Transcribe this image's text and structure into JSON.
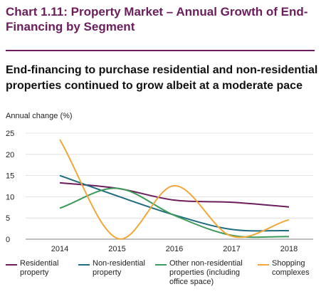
{
  "header": {
    "chart_title": "Chart 1.11: Property Market – Annual Growth of End-Financing by Segment",
    "subtitle": "End-financing to purchase residential and non-residential properties continued to grow albeit at a moderate pace"
  },
  "colors": {
    "title": "#6b1d5c",
    "residential": "#6b1d5c",
    "non_residential": "#1f6b80",
    "other_non_residential": "#3d9a5a",
    "shopping": "#f0a83a"
  },
  "chart_data": {
    "type": "line",
    "ylabel": "Annual change (%)",
    "xlabel": "",
    "x": [
      2014,
      2015,
      2016,
      2017,
      2018
    ],
    "x_tick_labels": [
      "2014",
      "2015",
      "2016",
      "2017",
      "2018"
    ],
    "ylim": [
      0,
      25
    ],
    "y_ticks": [
      0,
      5,
      10,
      15,
      20,
      25
    ],
    "grid": "horizontal",
    "legend_placement": "bottom",
    "series": [
      {
        "name": "Residential property",
        "key": "residential",
        "values": [
          13.3,
          12.0,
          9.2,
          8.7,
          7.6
        ]
      },
      {
        "name": "Non-residential property",
        "key": "non_residential",
        "values": [
          15.0,
          10.2,
          5.7,
          2.3,
          2.0
        ]
      },
      {
        "name": "Other non-residential properties (including office space)",
        "key": "other_non_residential",
        "values": [
          7.3,
          12.0,
          5.6,
          0.9,
          0.6
        ]
      },
      {
        "name": "Shopping complexes",
        "key": "shopping",
        "values": [
          23.5,
          0.2,
          12.6,
          0.7,
          4.6
        ]
      }
    ]
  }
}
